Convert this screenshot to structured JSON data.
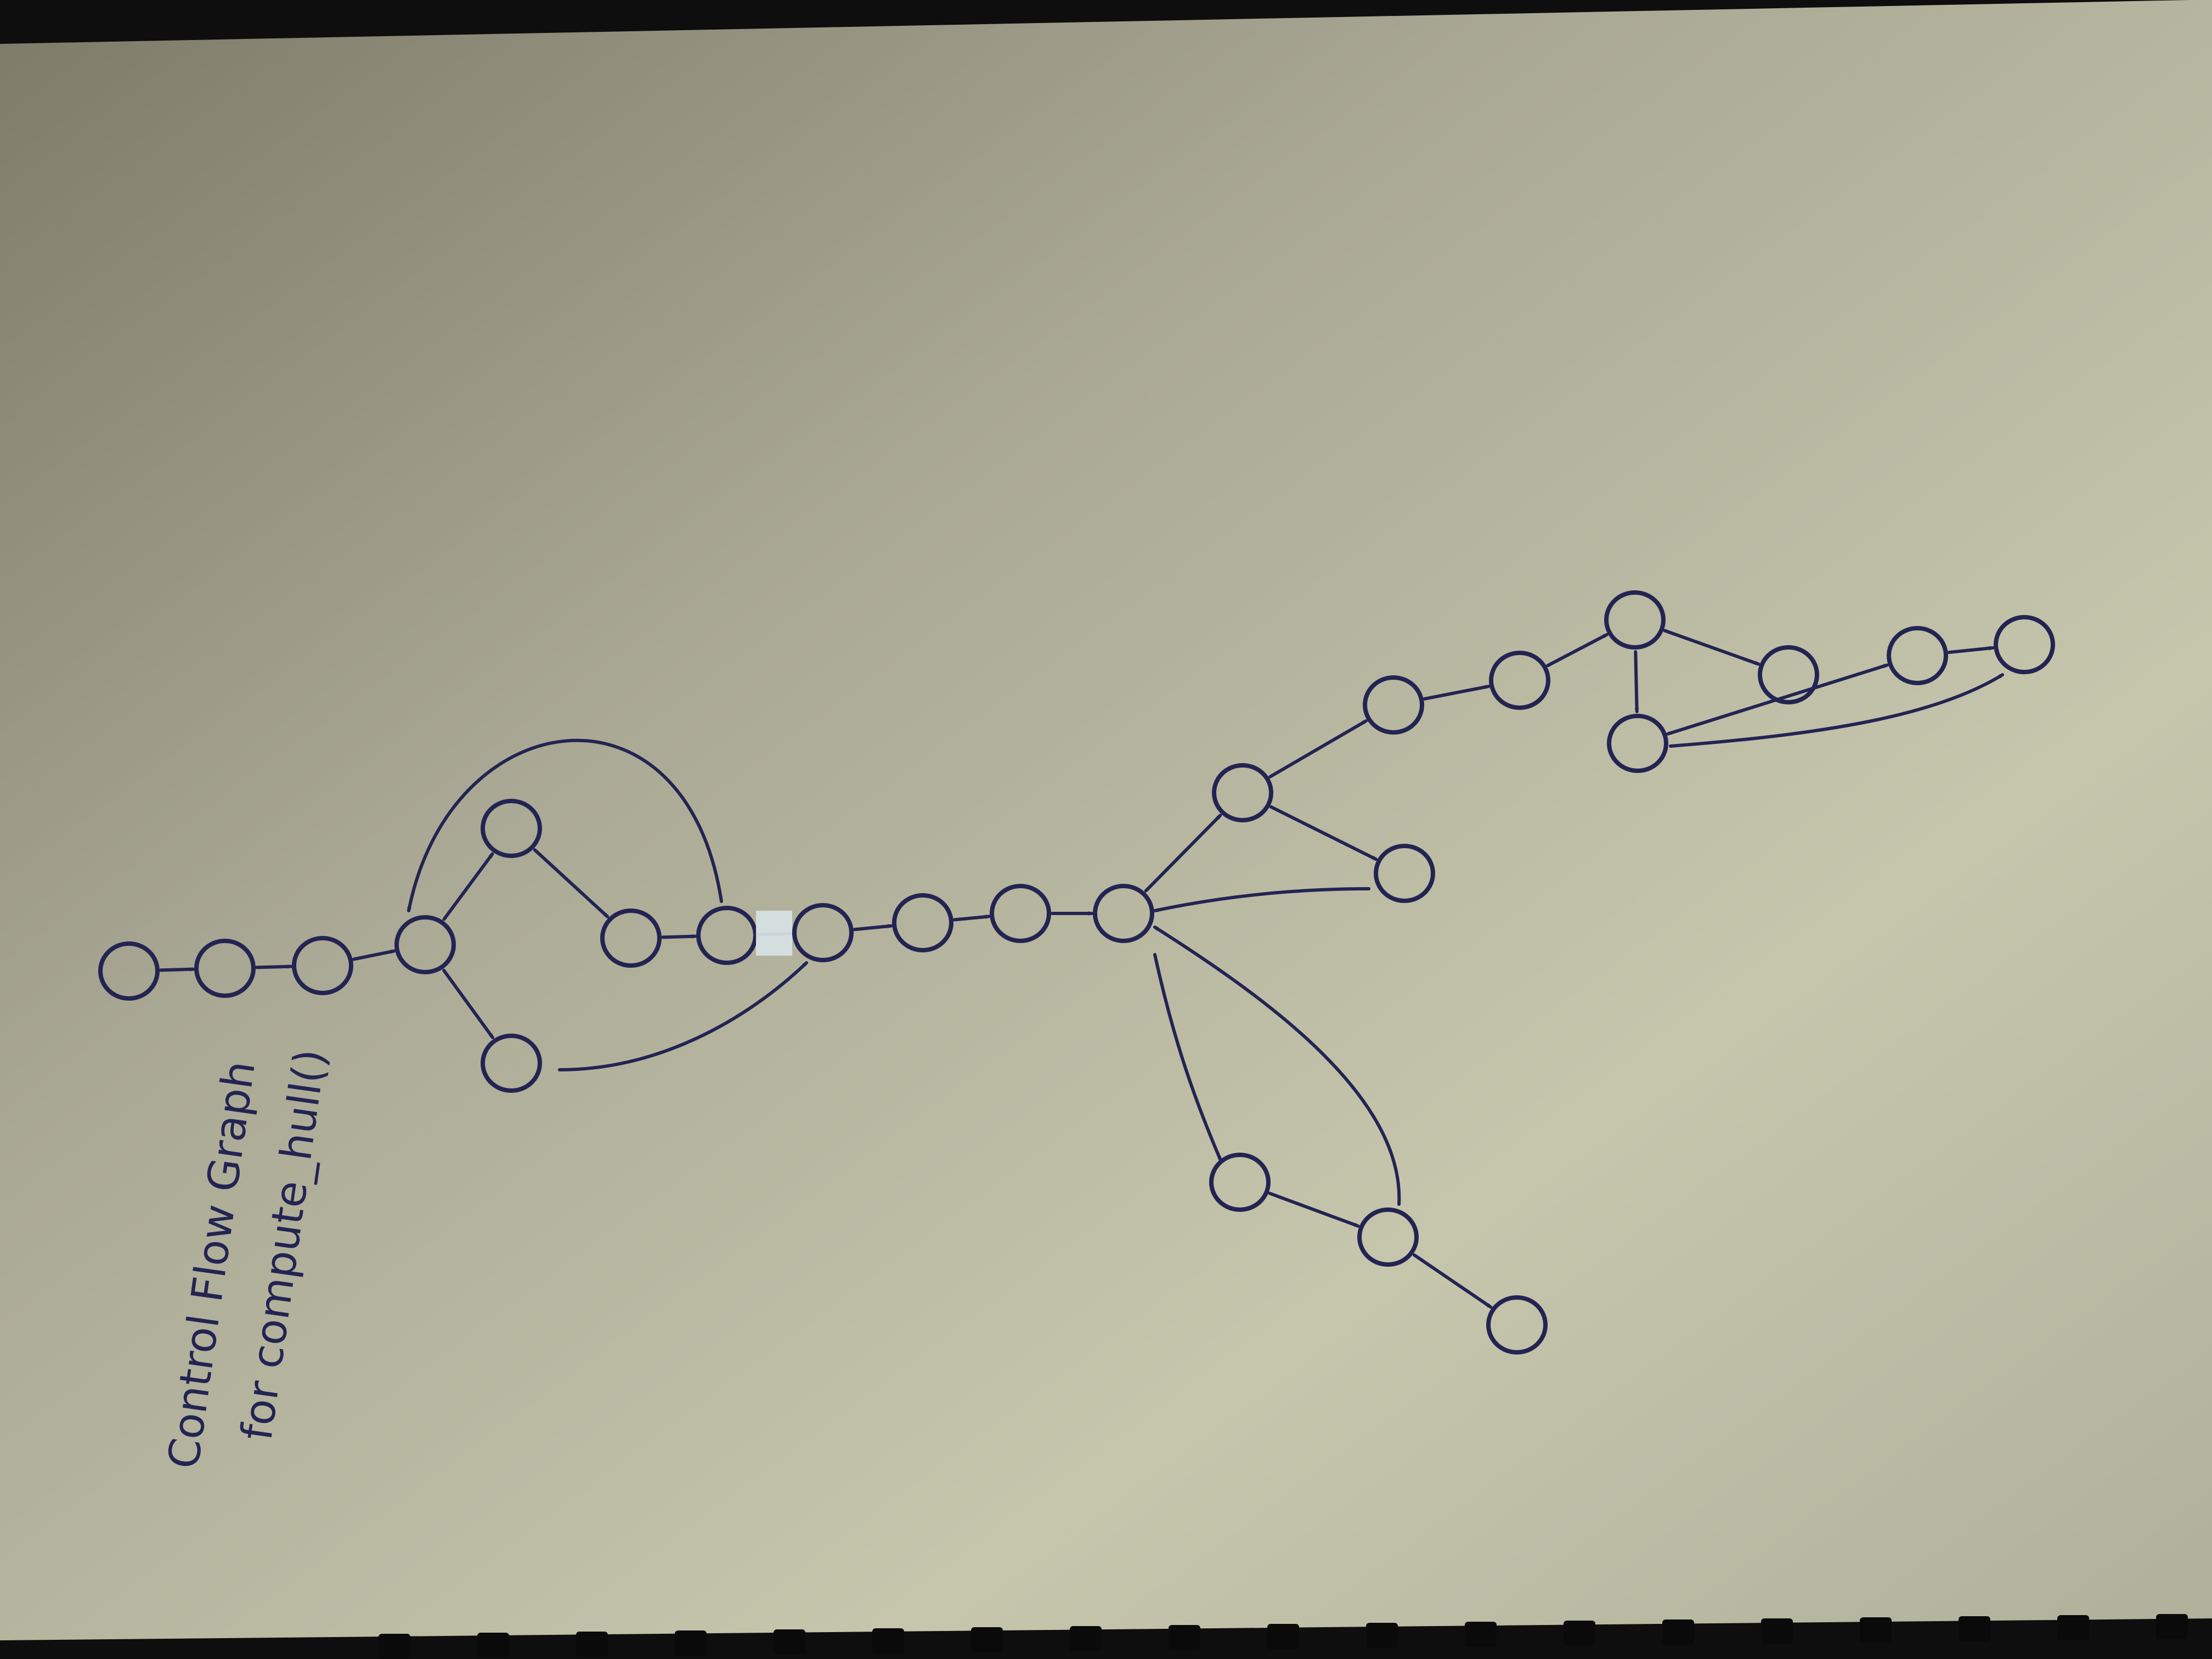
{
  "caption": {
    "line1": "Control Flow Graph",
    "line2": "for compute_hull()"
  },
  "colors": {
    "ink": "#232452",
    "paper": "#c9c7b0",
    "background": "#111111",
    "binding": "#0a0a0a",
    "tape": "#d6e0e2"
  },
  "graph": {
    "nodes": [
      "n1",
      "n2",
      "n3",
      "n4",
      "n5",
      "n6",
      "n7",
      "n8",
      "n9",
      "n10",
      "n11",
      "n12",
      "n13",
      "n14",
      "n15",
      "n16",
      "n17",
      "n18",
      "n19",
      "n20",
      "n21",
      "n22",
      "n23",
      "n24",
      "n25",
      "n26",
      "n27"
    ],
    "edges": [
      [
        "n1",
        "n2"
      ],
      [
        "n2",
        "n3"
      ],
      [
        "n3",
        "n4"
      ],
      [
        "n4",
        "n5"
      ],
      [
        "n4",
        "n9"
      ],
      [
        "n5",
        "n6"
      ],
      [
        "n6",
        "n7"
      ],
      [
        "n7",
        "n4"
      ],
      [
        "n9",
        "n8"
      ],
      [
        "n7",
        "n8"
      ],
      [
        "n8",
        "n10"
      ],
      [
        "n10",
        "n11"
      ],
      [
        "n11",
        "n12"
      ],
      [
        "n12",
        "n13"
      ],
      [
        "n13",
        "n14"
      ],
      [
        "n13",
        "n15"
      ],
      [
        "n15",
        "n12"
      ],
      [
        "n14",
        "n16"
      ],
      [
        "n16",
        "n17"
      ],
      [
        "n17",
        "n18"
      ],
      [
        "n17",
        "n19"
      ],
      [
        "n18",
        "n20"
      ],
      [
        "n20",
        "n21"
      ],
      [
        "n19",
        "n21"
      ],
      [
        "n21",
        "n22"
      ],
      [
        "n12",
        "n23"
      ],
      [
        "n23",
        "n24"
      ],
      [
        "n24",
        "n12"
      ],
      [
        "n24",
        "n25"
      ]
    ]
  }
}
